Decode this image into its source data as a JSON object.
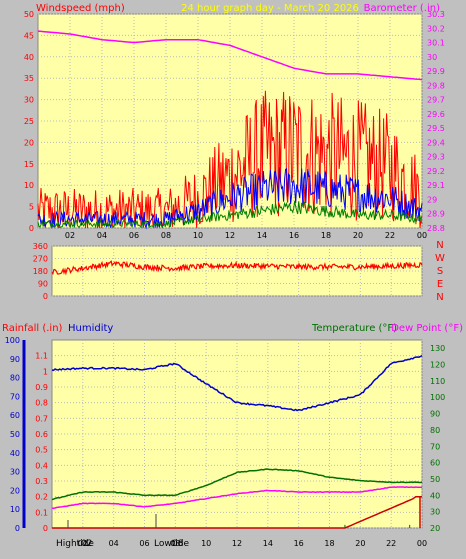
{
  "header": {
    "left_label": "Windspeed (mph)",
    "center_label": "24 hour graph day - March 20 2026",
    "right_label": "Barometer (.in)"
  },
  "direction_labels": [
    "N",
    "W",
    "S",
    "E",
    "N"
  ],
  "bottom_panel": {
    "rain_label": "Rainfall (.in)",
    "humidity_label": "Humidity",
    "temp_label": "Temperature (°F)",
    "dew_label": "Dew Point (°F)",
    "high_tide_label": "Hightide",
    "high_tide_time": "02",
    "low_tide_label": "Lowtide",
    "low_tide_time": "08"
  },
  "colors": {
    "background": "#c0c0c0",
    "plot": "#ffffa8",
    "wind": "#ff0000",
    "average": "#0000ff",
    "gust_low": "#008000",
    "barometer": "#ff00ff",
    "humidity": "#0000cc",
    "temperature": "#007000",
    "dew": "#ff00ff",
    "rain": "#cc0000"
  },
  "chart_data": [
    {
      "type": "line",
      "name": "wind-barometer",
      "x_ticks": [
        "02",
        "04",
        "06",
        "08",
        "10",
        "12",
        "14",
        "16",
        "18",
        "20",
        "22",
        "00"
      ],
      "x": [
        0,
        2,
        4,
        6,
        8,
        10,
        12,
        14,
        16,
        18,
        20,
        22,
        24
      ],
      "y_left_range": [
        0,
        50
      ],
      "y_left_ticks": [
        0,
        5,
        10,
        15,
        20,
        25,
        30,
        35,
        40,
        45,
        50
      ],
      "y_right_range": [
        28.8,
        30.3
      ],
      "y_right_ticks": [
        "28.8",
        "28.9",
        "29",
        "29.1",
        "29.2",
        "29.3",
        "29.4",
        "29.5",
        "29.6",
        "29.7",
        "29.8",
        "29.9",
        "30",
        "30.1",
        "30.2",
        "30.3"
      ],
      "series": [
        {
          "values": [
            4,
            4,
            4,
            4,
            4,
            7,
            12,
            17,
            18,
            17,
            16,
            14,
            8
          ]
        },
        {
          "values": [
            2,
            2,
            2,
            2,
            2,
            4,
            7,
            9,
            10,
            9,
            8,
            7,
            4
          ]
        },
        {
          "values": [
            1,
            1,
            1,
            1,
            1,
            2,
            3,
            4,
            5,
            4,
            3,
            3,
            2
          ]
        },
        {
          "values": [
            30.18,
            30.16,
            30.12,
            30.1,
            30.12,
            30.12,
            30.08,
            30.0,
            29.92,
            29.88,
            29.88,
            29.86,
            29.84
          ]
        }
      ]
    },
    {
      "type": "line",
      "name": "wind-direction",
      "y_range": [
        0,
        360
      ],
      "y_ticks": [
        0,
        90,
        180,
        270,
        360
      ],
      "series": [
        {
          "values": [
            170,
            200,
            235,
            210,
            200,
            215,
            220,
            215,
            210,
            210,
            210,
            215,
            225
          ]
        }
      ]
    },
    {
      "type": "line",
      "name": "rain-humidity-temp",
      "y_left_range": [
        0,
        100
      ],
      "y_left_ticks": [
        0,
        10,
        20,
        30,
        40,
        50,
        60,
        70,
        80,
        90,
        100
      ],
      "y_mid_range": [
        0,
        1.2
      ],
      "y_mid_ticks": [
        "0",
        "0.1",
        "0.2",
        "0.3",
        "0.4",
        "0.5",
        "0.6",
        "0.7",
        "0.8",
        "0.9",
        "1",
        "1.1"
      ],
      "y_right_range": [
        20,
        135
      ],
      "y_right_ticks": [
        20,
        30,
        40,
        50,
        60,
        70,
        80,
        90,
        100,
        110,
        120,
        130
      ],
      "series": [
        {
          "values": [
            1.01,
            1.02,
            1.02,
            1.01,
            1.05,
            0.92,
            0.8,
            0.78,
            0.75,
            0.8,
            0.85,
            1.05,
            1.1
          ]
        },
        {
          "values": [
            37.5,
            42,
            42,
            40,
            40,
            46,
            54,
            56,
            55,
            51,
            49,
            48,
            48
          ]
        },
        {
          "values": [
            32,
            35,
            35,
            33,
            35,
            38,
            41,
            43,
            42,
            42,
            42,
            45,
            45
          ]
        },
        {
          "values": [
            0,
            0,
            0,
            0,
            0,
            0,
            0,
            0,
            0,
            0,
            0.1,
            0.18,
            0.2
          ]
        }
      ]
    }
  ]
}
